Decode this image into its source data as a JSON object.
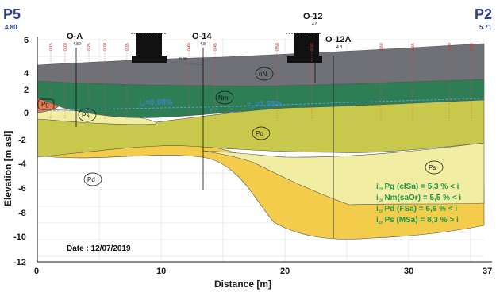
{
  "axes": {
    "x_label": "Distance [m]",
    "y_label": "Elevation [m asl]",
    "x_ticks": [
      "0",
      "10",
      "20",
      "30",
      "37"
    ],
    "y_ticks": [
      "6",
      "4",
      "2",
      "0",
      "-2",
      "-4",
      "-6",
      "-8",
      "-10",
      "-12"
    ]
  },
  "endpoints": {
    "left": {
      "name": "P5",
      "value": "4.80"
    },
    "right": {
      "name": "P2",
      "value": "5.71"
    }
  },
  "wells": [
    {
      "name": "O-A",
      "sub": "4.80"
    },
    {
      "name": "O-14",
      "sub": "4.8"
    },
    {
      "name": "O-12",
      "sub": "4.8"
    },
    {
      "name": "O-12A",
      "sub": "4.8"
    }
  ],
  "well_depth_label": "0.80",
  "red_values": [
    "0.15",
    "0.20",
    "0.25",
    "0.30",
    "0.35",
    "0.40",
    "0.45",
    "0.50",
    "0.55",
    "0.60",
    "0.65",
    "0.50",
    "0.55"
  ],
  "layers": {
    "nN": "nN",
    "Nm": "Nm",
    "Pg": "Pg",
    "Ps_top": "Ps",
    "Po": "Po",
    "Pd": "Pd",
    "Ps_bottom": "Ps"
  },
  "gradients": {
    "left_sub": "cr",
    "left_val": "=0,98%",
    "right_sub": "cr",
    "right_val": "=1,55%"
  },
  "legend": [
    {
      "sub": "cr",
      "text": "Pg (clSa)   = 5,3 % < i"
    },
    {
      "sub": "cr",
      "text": "Nm(saOr)  = 5,5 % < i"
    },
    {
      "sub": "cr",
      "text": "Pd (FSa)    = 6,6 % < i"
    },
    {
      "sub": "cr",
      "text": "Ps (MSa)   = 8,3 % > i"
    }
  ],
  "date": "Date : 12/07/2019",
  "colors": {
    "nN": "#6f7176",
    "Nm": "#2f7d55",
    "Pg": "#e8794a",
    "Ps": "#f1eea4",
    "Po": "#c7c84c",
    "Pd": "#f2cc4a",
    "grid": "#d6d6d6",
    "legend_text": "#1f9a4a",
    "gradient_text": "#3a86c8",
    "endpoint_text": "#2b3f9a"
  }
}
